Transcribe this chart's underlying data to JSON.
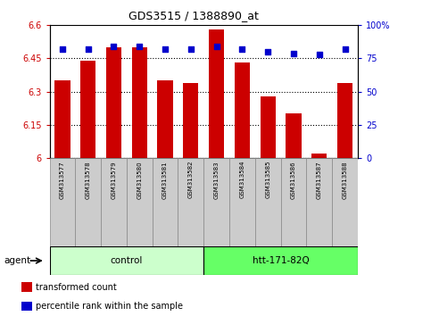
{
  "title": "GDS3515 / 1388890_at",
  "samples": [
    "GSM313577",
    "GSM313578",
    "GSM313579",
    "GSM313580",
    "GSM313581",
    "GSM313582",
    "GSM313583",
    "GSM313584",
    "GSM313585",
    "GSM313586",
    "GSM313587",
    "GSM313588"
  ],
  "bar_values": [
    6.35,
    6.44,
    6.5,
    6.5,
    6.35,
    6.34,
    6.58,
    6.43,
    6.28,
    6.2,
    6.02,
    6.34
  ],
  "percentile_values": [
    82,
    82,
    84,
    84,
    82,
    82,
    84,
    82,
    80,
    79,
    78,
    82
  ],
  "bar_color": "#cc0000",
  "percentile_color": "#0000cc",
  "ylim_left": [
    6.0,
    6.6
  ],
  "ylim_right": [
    0,
    100
  ],
  "yticks_left": [
    6.0,
    6.15,
    6.3,
    6.45,
    6.6
  ],
  "yticks_right": [
    0,
    25,
    50,
    75,
    100
  ],
  "ytick_labels_left": [
    "6",
    "6.15",
    "6.3",
    "6.45",
    "6.6"
  ],
  "ytick_labels_right": [
    "0",
    "25",
    "50",
    "75",
    "100%"
  ],
  "groups": [
    {
      "label": "control",
      "start": 0,
      "end": 5,
      "color": "#ccffcc"
    },
    {
      "label": "htt-171-82Q",
      "start": 6,
      "end": 11,
      "color": "#66ff66"
    }
  ],
  "agent_label": "agent",
  "legend_items": [
    {
      "label": "transformed count",
      "color": "#cc0000"
    },
    {
      "label": "percentile rank within the sample",
      "color": "#0000cc"
    }
  ],
  "bar_bottom": 6.0,
  "gray_box_color": "#cccccc",
  "gray_box_edge": "#888888"
}
